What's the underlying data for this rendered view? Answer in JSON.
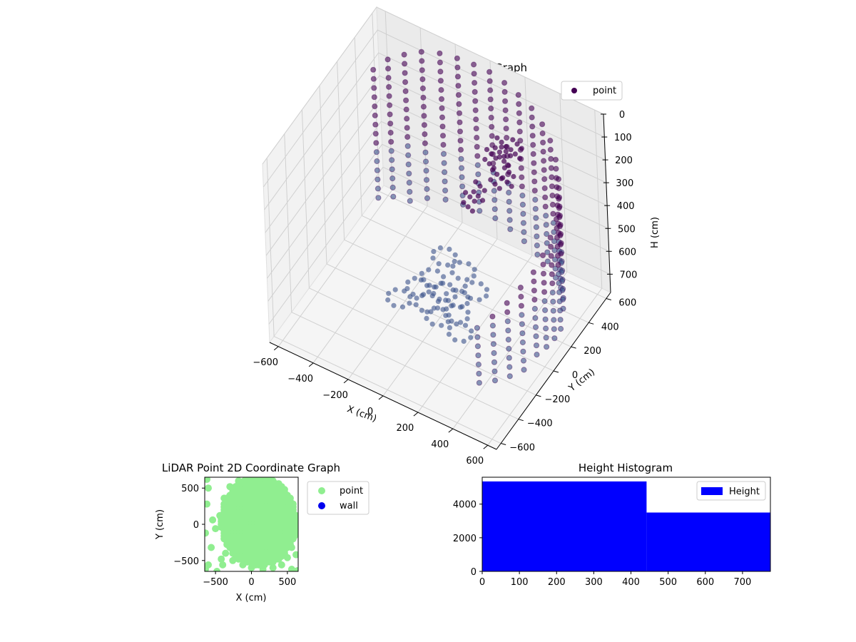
{
  "chart_data": [
    {
      "type": "scatter3d",
      "title": "LiDAR Point 3D Coordinate Graph",
      "xlabel": "X (cm)",
      "ylabel": "Y (cm)",
      "zlabel": "H (cm)",
      "xlim": [
        -650,
        650
      ],
      "ylim": [
        -650,
        650
      ],
      "zlim": [
        0,
        780
      ],
      "zinverted": true,
      "xticks": [
        -600,
        -400,
        -200,
        0,
        200,
        400,
        600
      ],
      "yticks": [
        -600,
        -400,
        -200,
        0,
        200,
        400,
        600
      ],
      "zticks": [
        0,
        100,
        200,
        300,
        400,
        500,
        600,
        700
      ],
      "grid": true,
      "legend": {
        "placement": "top-right",
        "entries": [
          "point"
        ]
      },
      "colors": {
        "dark": "#440154",
        "mid": "#3b528b",
        "teal": "#21918c",
        "light": "#90d743"
      },
      "series": [
        {
          "name": "point",
          "description_points": "approximate wall-ring and floor-cluster points (x, y, h in cm)",
          "wall_ring": [
            [
              -560,
              420,
              120
            ],
            [
              -500,
              470,
              80
            ],
            [
              -430,
              520,
              60
            ],
            [
              -350,
              560,
              40
            ],
            [
              -260,
              590,
              30
            ],
            [
              -170,
              610,
              30
            ],
            [
              -80,
              620,
              30
            ],
            [
              10,
              620,
              30
            ],
            [
              100,
              610,
              40
            ],
            [
              190,
              590,
              50
            ],
            [
              280,
              560,
              60
            ],
            [
              360,
              520,
              80
            ],
            [
              430,
              470,
              100
            ],
            [
              490,
              410,
              130
            ],
            [
              540,
              340,
              160
            ],
            [
              580,
              260,
              190
            ],
            [
              610,
              170,
              220
            ],
            [
              620,
              80,
              250
            ],
            [
              620,
              -10,
              280
            ],
            [
              610,
              -100,
              310
            ],
            [
              580,
              -190,
              340
            ],
            [
              540,
              -270,
              380
            ],
            [
              490,
              -340,
              420
            ],
            [
              430,
              -400,
              460
            ]
          ],
          "floor_cluster": [
            [
              -80,
              80,
              680
            ],
            [
              0,
              60,
              700
            ],
            [
              80,
              40,
              690
            ],
            [
              120,
              -40,
              700
            ],
            [
              40,
              -100,
              710
            ],
            [
              -40,
              -60,
              700
            ],
            [
              -120,
              0,
              690
            ],
            [
              160,
              100,
              660
            ],
            [
              -160,
              -140,
              680
            ],
            [
              200,
              -160,
              690
            ],
            [
              60,
              160,
              640
            ],
            [
              -60,
              180,
              630
            ]
          ],
          "ceiling_cluster": [
            [
              180,
              360,
              120
            ],
            [
              220,
              330,
              130
            ],
            [
              150,
              300,
              150
            ],
            [
              260,
              380,
              110
            ],
            [
              200,
              260,
              200
            ],
            [
              120,
              220,
              260
            ],
            [
              80,
              180,
              300
            ],
            [
              260,
              280,
              180
            ]
          ]
        }
      ]
    },
    {
      "type": "scatter",
      "title": "LiDAR Point 2D Coordinate Graph",
      "xlabel": "X (cm)",
      "ylabel": "Y (cm)",
      "xlim": [
        -650,
        650
      ],
      "ylim": [
        -650,
        650
      ],
      "xticks": [
        -500,
        0,
        500
      ],
      "yticks": [
        -500,
        0,
        500
      ],
      "legend": {
        "placement": "outside-right",
        "entries": [
          "point",
          "wall"
        ]
      },
      "series": [
        {
          "name": "point",
          "color": "#90ee90",
          "points": [
            [
              -600,
              500
            ],
            [
              -620,
              280
            ],
            [
              -640,
              -120
            ],
            [
              -560,
              -320
            ],
            [
              -600,
              -560
            ],
            [
              -640,
              -620
            ],
            [
              -480,
              -650
            ],
            [
              -420,
              -480
            ],
            [
              -500,
              -60
            ],
            [
              -440,
              120
            ],
            [
              -380,
              360
            ],
            [
              -300,
              520
            ],
            [
              -180,
              600
            ],
            [
              -60,
              640
            ],
            [
              80,
              650
            ],
            [
              200,
              620
            ],
            [
              320,
              560
            ],
            [
              420,
              460
            ],
            [
              500,
              320
            ],
            [
              560,
              160
            ],
            [
              600,
              0
            ],
            [
              600,
              -160
            ],
            [
              560,
              -320
            ],
            [
              500,
              -460
            ],
            [
              420,
              -560
            ],
            [
              300,
              -600
            ],
            [
              160,
              -620
            ],
            [
              0,
              -600
            ],
            [
              -120,
              -560
            ],
            [
              -260,
              -500
            ],
            [
              -360,
              -400
            ],
            [
              640,
              -120
            ],
            [
              640,
              -640
            ],
            [
              620,
              -420
            ],
            [
              560,
              -620
            ],
            [
              -540,
              60
            ],
            [
              -620,
              620
            ],
            [
              -400,
              -560
            ]
          ],
          "fill_region_note": "dense filled cloud covering roughly x in [-420, 620], y in [-560, 650]"
        },
        {
          "name": "wall",
          "color": "#0000ee",
          "points": []
        }
      ]
    },
    {
      "type": "bar",
      "title": "Height Histogram",
      "xlim": [
        0,
        775
      ],
      "ylim": [
        0,
        5600
      ],
      "xticks": [
        0,
        100,
        200,
        300,
        400,
        500,
        600,
        700
      ],
      "yticks": [
        0,
        2000,
        4000
      ],
      "legend": {
        "placement": "top-right",
        "entries": [
          "Height"
        ]
      },
      "series": [
        {
          "name": "Height",
          "color": "#0000ff",
          "bins": [
            {
              "x0": 0,
              "x1": 442,
              "count": 5350
            },
            {
              "x0": 442,
              "x1": 775,
              "count": 3500
            }
          ]
        }
      ]
    }
  ]
}
